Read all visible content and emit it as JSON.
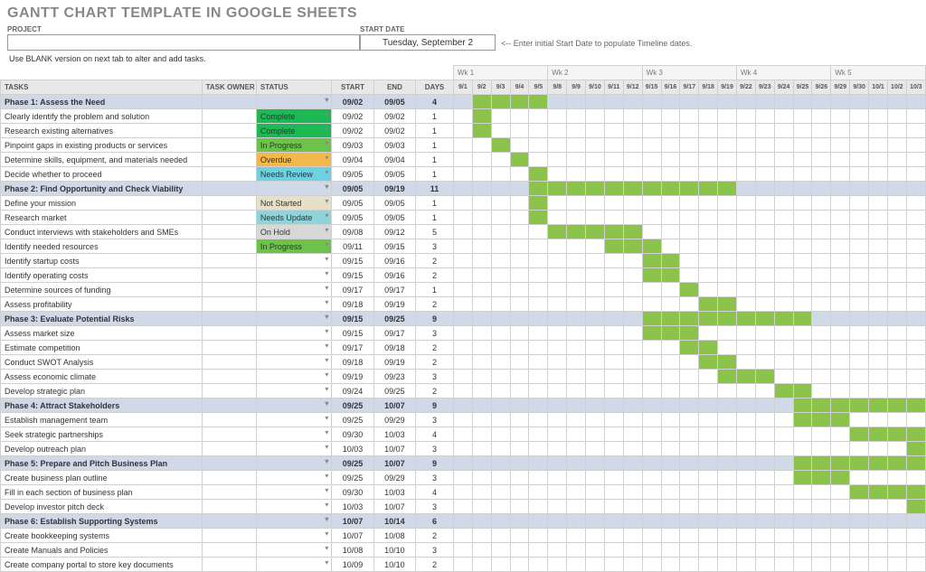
{
  "title": "GANTT CHART TEMPLATE IN GOOGLE SHEETS",
  "headers": {
    "project_label": "PROJECT",
    "project_value": "",
    "startdate_label": "START DATE",
    "startdate_value": "Tuesday, September 2",
    "hint": "<-- Enter initial Start Date to populate Timeline dates."
  },
  "note": "Use BLANK version on next tab to alter and add tasks.",
  "columns": {
    "tasks": "TASKS",
    "owner": "TASK OWNER",
    "status": "STATUS",
    "start": "START",
    "end": "END",
    "days": "DAYS"
  },
  "weeks": [
    "Wk 1",
    "Wk 2",
    "Wk 3",
    "Wk 4",
    "Wk 5",
    ""
  ],
  "day_labels": [
    "9/1",
    "9/2",
    "9/3",
    "9/4",
    "9/5",
    "9/8",
    "9/9",
    "9/10",
    "9/11",
    "9/12",
    "9/15",
    "9/16",
    "9/17",
    "9/18",
    "9/19",
    "9/22",
    "9/23",
    "9/24",
    "9/25",
    "9/26",
    "9/29",
    "9/30",
    "10/1",
    "10/2",
    "10/3"
  ],
  "status_colors": {
    "In Progress": "#6cc24a",
    "Complete": "#1db954",
    "Overdue": "#f2b84b",
    "Needs Review": "#6fd1e0",
    "Not Started": "#e6e0c8",
    "Needs Update": "#8fd4d9",
    "On Hold": "#d8d8d8",
    "": "transparent"
  },
  "gantt_bar_color": "#8bc34a",
  "phase_bg": "#d0d9e8",
  "header_bg": "#e8e8e8",
  "border_color": "#d0d0d0",
  "rows": [
    {
      "type": "phase",
      "task": "Phase 1: Assess the Need",
      "status": "",
      "start": "09/02",
      "end": "09/05",
      "days": 4,
      "bar": [
        1,
        4
      ]
    },
    {
      "type": "task",
      "task": "Clearly identify the problem and solution",
      "status": "Complete",
      "start": "09/02",
      "end": "09/02",
      "days": 1,
      "bar": [
        1,
        1
      ]
    },
    {
      "type": "task",
      "task": "Research existing alternatives",
      "status": "Complete",
      "start": "09/02",
      "end": "09/02",
      "days": 1,
      "bar": [
        1,
        1
      ]
    },
    {
      "type": "task",
      "task": "Pinpoint gaps in existing products or services",
      "status": "In Progress",
      "start": "09/03",
      "end": "09/03",
      "days": 1,
      "bar": [
        2,
        2
      ]
    },
    {
      "type": "task",
      "task": "Determine skills, equipment, and materials needed",
      "status": "Overdue",
      "start": "09/04",
      "end": "09/04",
      "days": 1,
      "bar": [
        3,
        3
      ]
    },
    {
      "type": "task",
      "task": "Decide whether to proceed",
      "status": "Needs Review",
      "start": "09/05",
      "end": "09/05",
      "days": 1,
      "bar": [
        4,
        4
      ]
    },
    {
      "type": "phase",
      "task": "Phase 2: Find Opportunity and Check Viability",
      "status": "",
      "start": "09/05",
      "end": "09/19",
      "days": 11,
      "bar": [
        4,
        14
      ]
    },
    {
      "type": "task",
      "task": "Define your mission",
      "status": "Not Started",
      "start": "09/05",
      "end": "09/05",
      "days": 1,
      "bar": [
        4,
        4
      ]
    },
    {
      "type": "task",
      "task": "Research market",
      "status": "Needs Update",
      "start": "09/05",
      "end": "09/05",
      "days": 1,
      "bar": [
        4,
        4
      ]
    },
    {
      "type": "task",
      "task": "Conduct interviews with stakeholders and SMEs",
      "status": "On Hold",
      "start": "09/08",
      "end": "09/12",
      "days": 5,
      "bar": [
        5,
        9
      ]
    },
    {
      "type": "task",
      "task": "Identify needed resources",
      "status": "In Progress",
      "start": "09/11",
      "end": "09/15",
      "days": 3,
      "bar": [
        8,
        10
      ]
    },
    {
      "type": "task",
      "task": "Identify startup costs",
      "status": "",
      "start": "09/15",
      "end": "09/16",
      "days": 2,
      "bar": [
        10,
        11
      ]
    },
    {
      "type": "task",
      "task": "Identify operating costs",
      "status": "",
      "start": "09/15",
      "end": "09/16",
      "days": 2,
      "bar": [
        10,
        11
      ]
    },
    {
      "type": "task",
      "task": "Determine sources of funding",
      "status": "",
      "start": "09/17",
      "end": "09/17",
      "days": 1,
      "bar": [
        12,
        12
      ]
    },
    {
      "type": "task",
      "task": "Assess profitability",
      "status": "",
      "start": "09/18",
      "end": "09/19",
      "days": 2,
      "bar": [
        13,
        14
      ]
    },
    {
      "type": "phase",
      "task": "Phase 3: Evaluate Potential Risks",
      "status": "",
      "start": "09/15",
      "end": "09/25",
      "days": 9,
      "bar": [
        10,
        18
      ]
    },
    {
      "type": "task",
      "task": "Assess market size",
      "status": "",
      "start": "09/15",
      "end": "09/17",
      "days": 3,
      "bar": [
        10,
        12
      ]
    },
    {
      "type": "task",
      "task": "Estimate competition",
      "status": "",
      "start": "09/17",
      "end": "09/18",
      "days": 2,
      "bar": [
        12,
        13
      ]
    },
    {
      "type": "task",
      "task": "Conduct SWOT Analysis",
      "status": "",
      "start": "09/18",
      "end": "09/19",
      "days": 2,
      "bar": [
        13,
        14
      ]
    },
    {
      "type": "task",
      "task": "Assess economic climate",
      "status": "",
      "start": "09/19",
      "end": "09/23",
      "days": 3,
      "bar": [
        14,
        16
      ]
    },
    {
      "type": "task",
      "task": "Develop strategic plan",
      "status": "",
      "start": "09/24",
      "end": "09/25",
      "days": 2,
      "bar": [
        17,
        18
      ]
    },
    {
      "type": "phase",
      "task": "Phase 4: Attract Stakeholders",
      "status": "",
      "start": "09/25",
      "end": "10/07",
      "days": 9,
      "bar": [
        18,
        24
      ]
    },
    {
      "type": "task",
      "task": "Establish management team",
      "status": "",
      "start": "09/25",
      "end": "09/29",
      "days": 3,
      "bar": [
        18,
        20
      ]
    },
    {
      "type": "task",
      "task": "Seek strategic partnerships",
      "status": "",
      "start": "09/30",
      "end": "10/03",
      "days": 4,
      "bar": [
        21,
        24
      ]
    },
    {
      "type": "task",
      "task": "Develop outreach plan",
      "status": "",
      "start": "10/03",
      "end": "10/07",
      "days": 3,
      "bar": [
        24,
        24
      ]
    },
    {
      "type": "phase",
      "task": "Phase 5: Prepare and Pitch Business Plan",
      "status": "",
      "start": "09/25",
      "end": "10/07",
      "days": 9,
      "bar": [
        18,
        24
      ]
    },
    {
      "type": "task",
      "task": "Create business plan outline",
      "status": "",
      "start": "09/25",
      "end": "09/29",
      "days": 3,
      "bar": [
        18,
        20
      ]
    },
    {
      "type": "task",
      "task": "Fill in each section of business plan",
      "status": "",
      "start": "09/30",
      "end": "10/03",
      "days": 4,
      "bar": [
        21,
        24
      ]
    },
    {
      "type": "task",
      "task": "Develop investor pitch deck",
      "status": "",
      "start": "10/03",
      "end": "10/07",
      "days": 3,
      "bar": [
        24,
        24
      ]
    },
    {
      "type": "phase",
      "task": "Phase 6: Establish Supporting Systems",
      "status": "",
      "start": "10/07",
      "end": "10/14",
      "days": 6,
      "bar": [
        -1,
        -1
      ]
    },
    {
      "type": "task",
      "task": "Create bookkeeping systems",
      "status": "",
      "start": "10/07",
      "end": "10/08",
      "days": 2,
      "bar": [
        -1,
        -1
      ]
    },
    {
      "type": "task",
      "task": "Create Manuals and Policies",
      "status": "",
      "start": "10/08",
      "end": "10/10",
      "days": 3,
      "bar": [
        -1,
        -1
      ]
    },
    {
      "type": "task",
      "task": "Create company portal to store key documents",
      "status": "",
      "start": "10/09",
      "end": "10/10",
      "days": 2,
      "bar": [
        -1,
        -1
      ]
    }
  ]
}
